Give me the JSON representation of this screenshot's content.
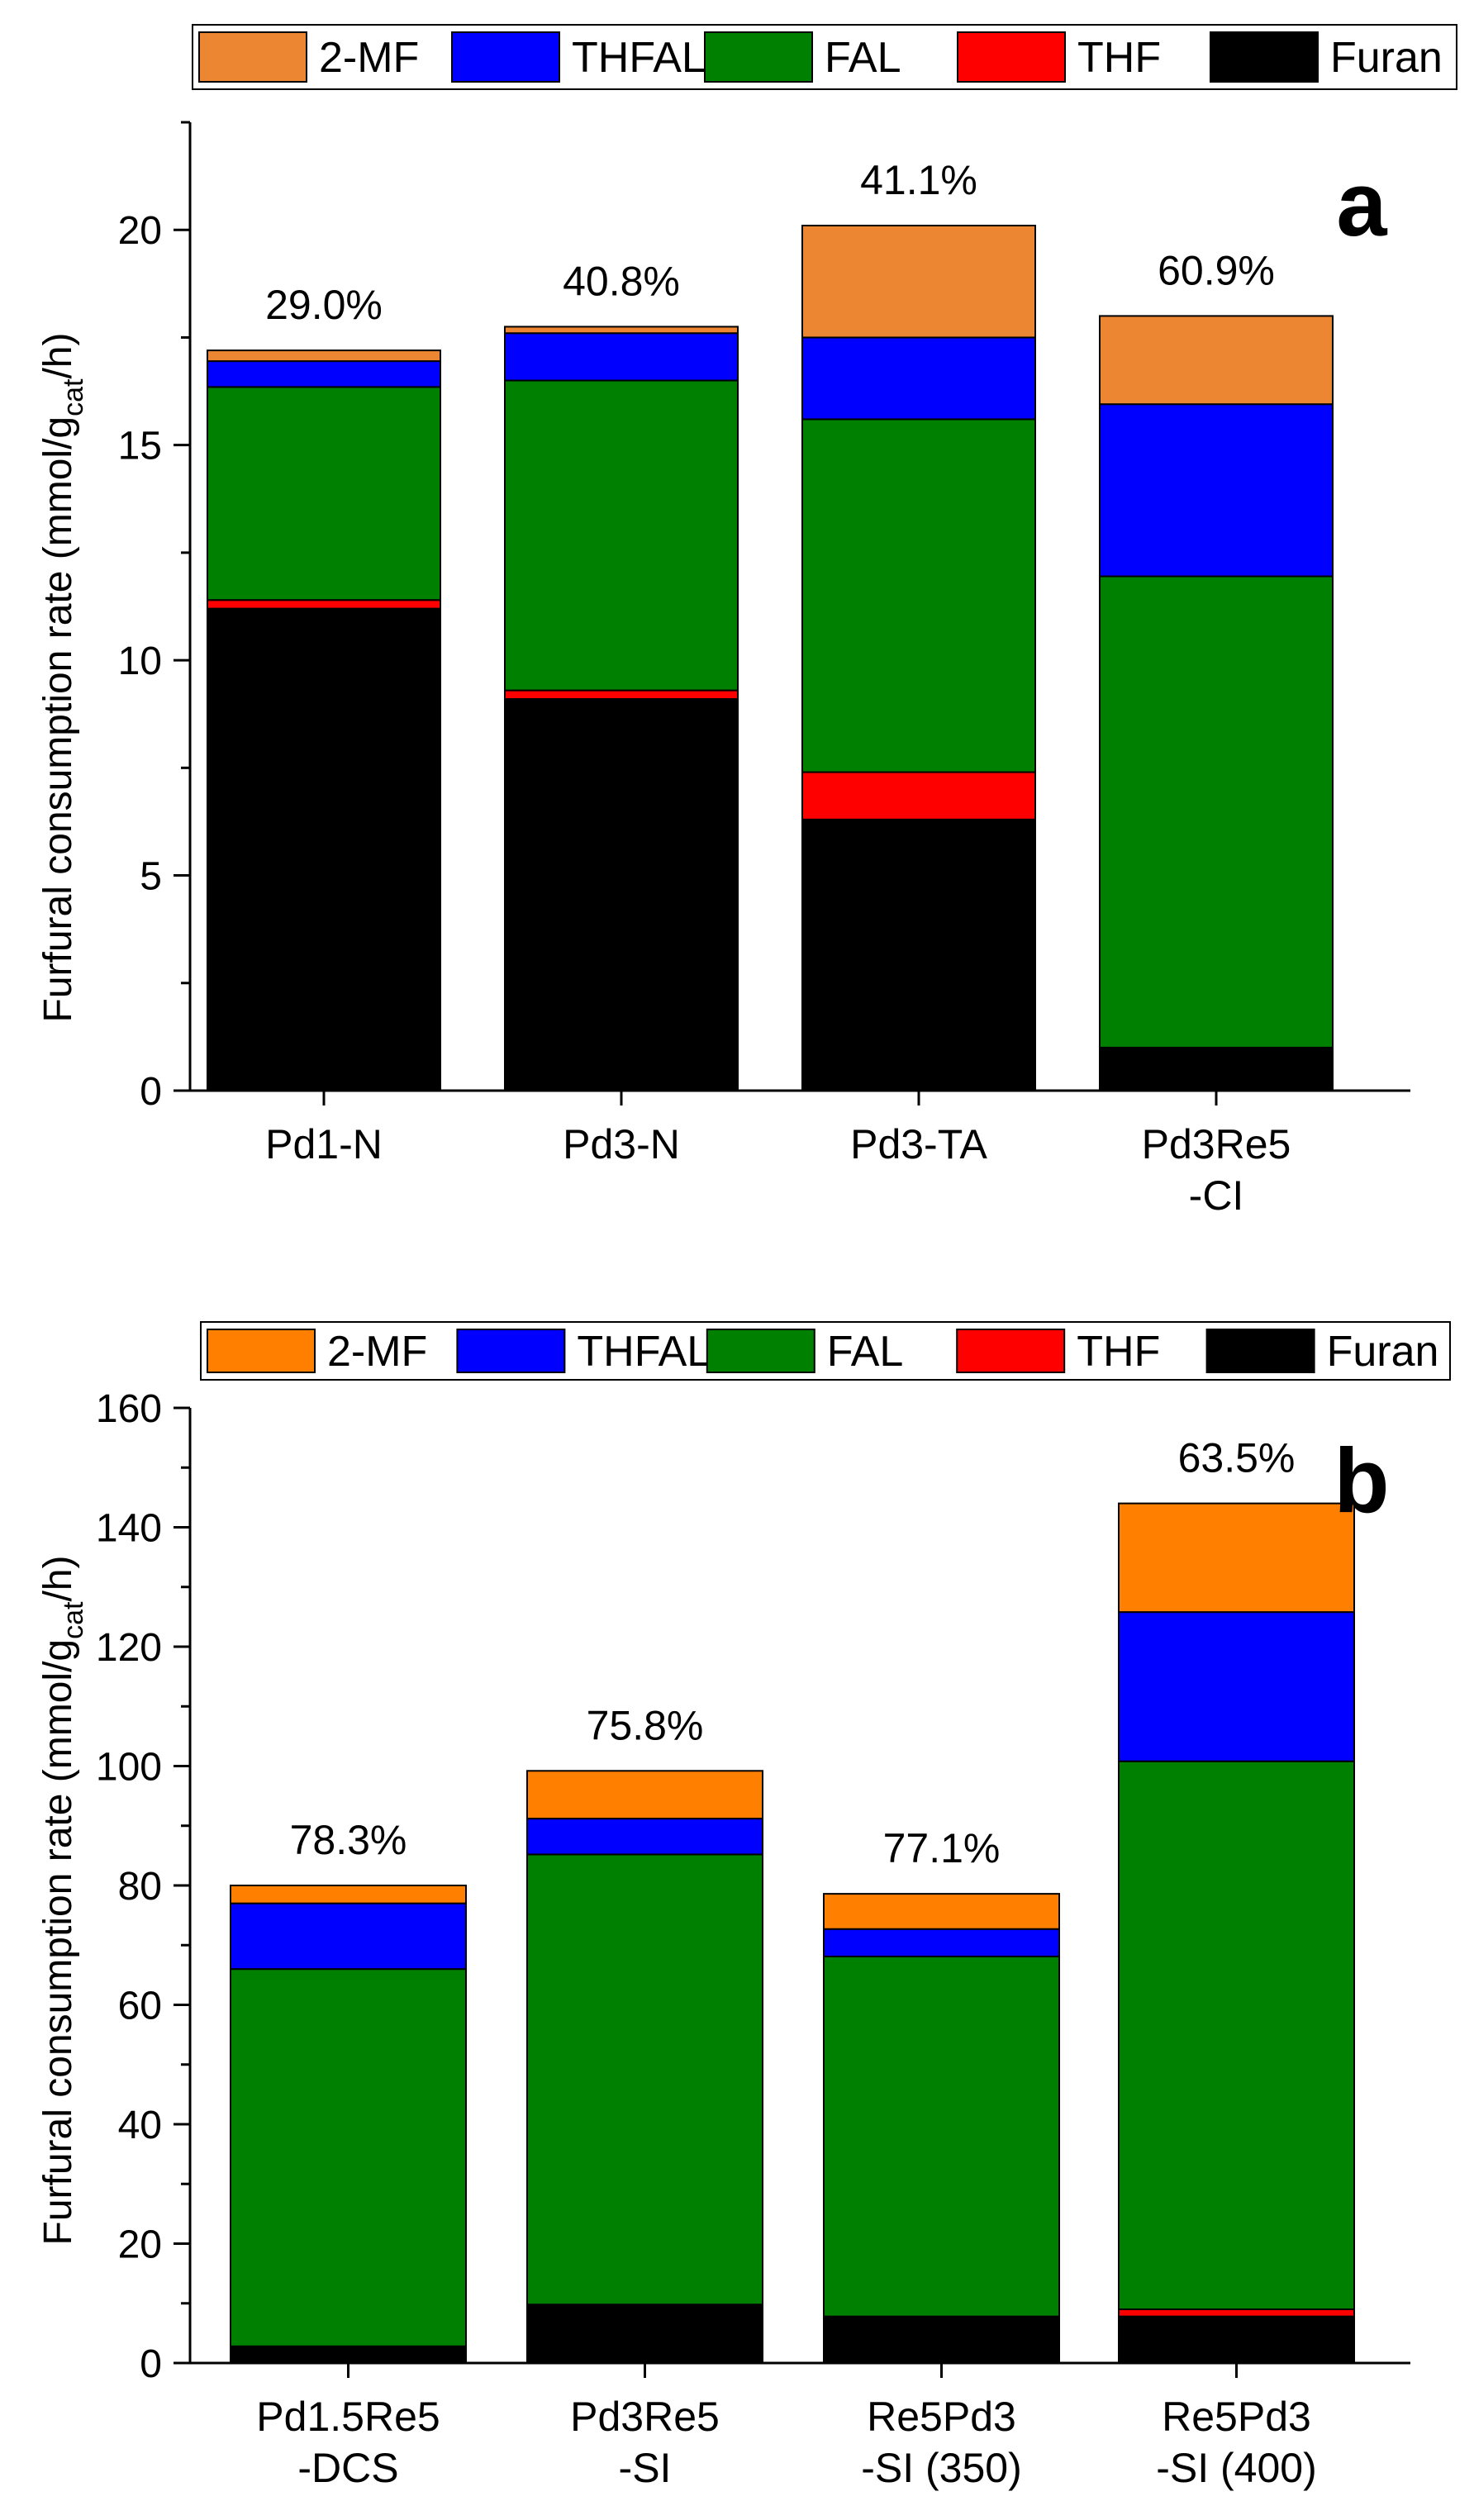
{
  "chart_data": [
    {
      "type": "stacked-bar",
      "panel": "a",
      "ylabel": "Furfural consumption rate (mmol/g",
      "ylabel_sub": "cat",
      "ylabel_end": "/h)",
      "ylim": [
        0,
        22.5
      ],
      "yticks": [
        0,
        5,
        10,
        15,
        20
      ],
      "legend": [
        "2-MF",
        "THFAL",
        "FAL",
        "THF",
        "Furan"
      ],
      "categories": [
        [
          "Pd1-N"
        ],
        [
          "Pd3-N"
        ],
        [
          "Pd3-TA"
        ],
        [
          "Pd3Re5",
          "-CI"
        ]
      ],
      "series": [
        {
          "name": "Furan",
          "color": "#000000",
          "values": [
            11.2,
            9.1,
            6.3,
            1.0
          ]
        },
        {
          "name": "THF",
          "color": "#ff0000",
          "values": [
            0.2,
            0.2,
            1.1,
            0.0
          ]
        },
        {
          "name": "FAL",
          "color": "#008000",
          "values": [
            4.95,
            7.2,
            8.2,
            10.95
          ]
        },
        {
          "name": "THFAL",
          "color": "#0000ff",
          "values": [
            0.6,
            1.1,
            1.9,
            4.0
          ]
        },
        {
          "name": "2-MF",
          "color": "#ed8632",
          "values": [
            0.25,
            0.15,
            2.6,
            2.05
          ]
        }
      ],
      "annotations": [
        "29.0%",
        "40.8%",
        "41.1%",
        "60.9%"
      ]
    },
    {
      "type": "stacked-bar",
      "panel": "b",
      "ylabel": "Furfural consumption rate (mmol/g",
      "ylabel_sub": "cat",
      "ylabel_end": "/h)",
      "ylim": [
        0,
        160
      ],
      "yticks": [
        0,
        20,
        40,
        60,
        80,
        100,
        120,
        140,
        160
      ],
      "legend": [
        "2-MF",
        "THFAL",
        "FAL",
        "THF",
        "Furan"
      ],
      "categories": [
        [
          "Pd1.5Re5",
          "-DCS"
        ],
        [
          "Pd3Re5",
          "-SI"
        ],
        [
          "Re5Pd3",
          "-SI (350)"
        ],
        [
          "Re5Pd3",
          "-SI (400)"
        ]
      ],
      "series": [
        {
          "name": "Furan",
          "color": "#000000",
          "values": [
            2.8,
            9.8,
            7.8,
            7.8
          ]
        },
        {
          "name": "THF",
          "color": "#ff0000",
          "values": [
            0.0,
            0.0,
            0.0,
            1.2
          ]
        },
        {
          "name": "FAL",
          "color": "#008000",
          "values": [
            63.2,
            75.4,
            60.3,
            91.8
          ]
        },
        {
          "name": "THFAL",
          "color": "#0000ff",
          "values": [
            11.0,
            6.0,
            4.6,
            25.0
          ]
        },
        {
          "name": "2-MF",
          "color": "#ff8000",
          "values": [
            3.0,
            8.0,
            5.9,
            18.2
          ]
        }
      ],
      "annotations": [
        "78.3%",
        "75.8%",
        "77.1%",
        "63.5%"
      ]
    }
  ]
}
